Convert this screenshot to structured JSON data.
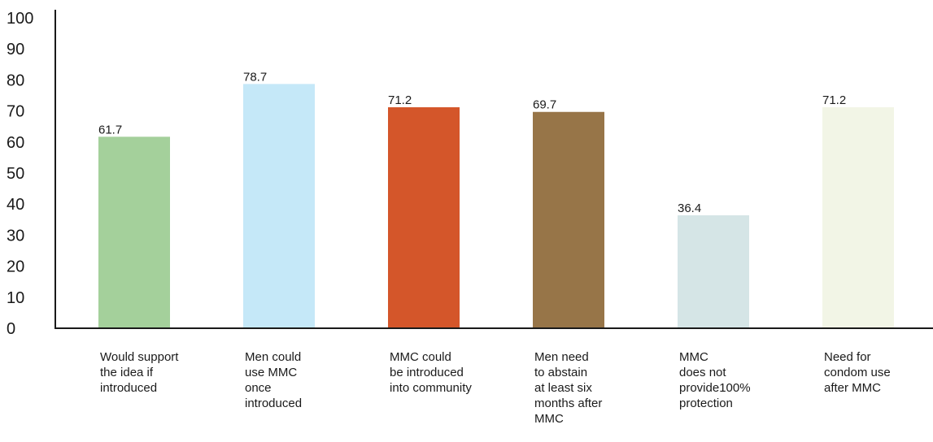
{
  "chart_data": {
    "type": "bar",
    "title": "",
    "xlabel": "",
    "ylabel": "",
    "ylim": [
      0,
      100
    ],
    "yticks": [
      0,
      10,
      20,
      30,
      40,
      50,
      60,
      70,
      80,
      90,
      100
    ],
    "categories": [
      "Would support\nthe idea if\nintroduced",
      "Men could\nuse MMC\nonce\nintroduced",
      "MMC could\nbe introduced\ninto community",
      "Men need\nto abstain\nat least six\nmonths after\nMMC",
      "MMC\ndoes not\nprovide100%\nprotection",
      "Need for\ncondom use\nafter MMC"
    ],
    "values": [
      61.7,
      78.7,
      71.2,
      69.7,
      36.4,
      71.2
    ],
    "data_labels": [
      "61.7",
      "78.7",
      "71.2",
      "69.7",
      "36.4",
      "71.2"
    ],
    "colors": [
      "#a4d09b",
      "#c5e8f8",
      "#d4562a",
      "#977548",
      "#d5e5e6",
      "#f2f5e6"
    ],
    "grid": false,
    "legend": "none"
  }
}
